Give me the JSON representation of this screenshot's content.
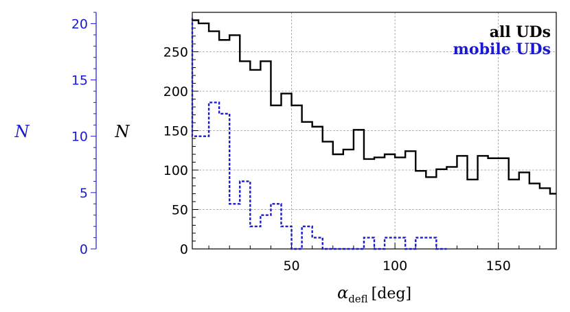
{
  "chart_data": {
    "type": "histogram-step",
    "xlabel": {
      "symbol": "α",
      "subscript": "defl",
      "unit": "[deg]"
    },
    "xlim": [
      2,
      178
    ],
    "xticks": [
      50,
      100,
      150
    ],
    "y_left_outer": {
      "label": "N",
      "lim": [
        0,
        21
      ],
      "ticks": [
        0,
        5,
        10,
        15,
        20
      ],
      "color": "#1a1acc"
    },
    "y_left_inner": {
      "label": "N",
      "lim": [
        0,
        300
      ],
      "ticks": [
        0,
        50,
        100,
        150,
        200,
        250
      ],
      "color": "#000000"
    },
    "grid": true,
    "legend_position": "top-right",
    "bin_edges": [
      0,
      5,
      10,
      15,
      20,
      25,
      30,
      35,
      40,
      45,
      50,
      55,
      60,
      65,
      70,
      75,
      80,
      85,
      90,
      95,
      100,
      105,
      110,
      115,
      120,
      125,
      130,
      135,
      140,
      145,
      150,
      155,
      160,
      165,
      170,
      175,
      180
    ],
    "series": [
      {
        "name": "all UDs",
        "axis": "inner",
        "color": "#000000",
        "dash": false,
        "values": [
          290,
          286,
          276,
          265,
          271,
          238,
          227,
          238,
          182,
          197,
          182,
          161,
          155,
          136,
          120,
          126,
          151,
          114,
          116,
          120,
          116,
          124,
          99,
          91,
          101,
          104,
          118,
          88,
          118,
          115,
          115,
          88,
          97,
          83,
          77,
          70
        ]
      },
      {
        "name": "mobile UDs",
        "axis": "outer",
        "color": "#1a1acc",
        "dash": true,
        "values": [
          10,
          10,
          13,
          12,
          4,
          6,
          2,
          3,
          4,
          2,
          0,
          2,
          1,
          0,
          0,
          0,
          0,
          1,
          0,
          1,
          1,
          0,
          1,
          1,
          0,
          0,
          0,
          0,
          0,
          0,
          0,
          0,
          0,
          0,
          0,
          0
        ],
        "first_bin_peak": 20.5
      }
    ]
  }
}
